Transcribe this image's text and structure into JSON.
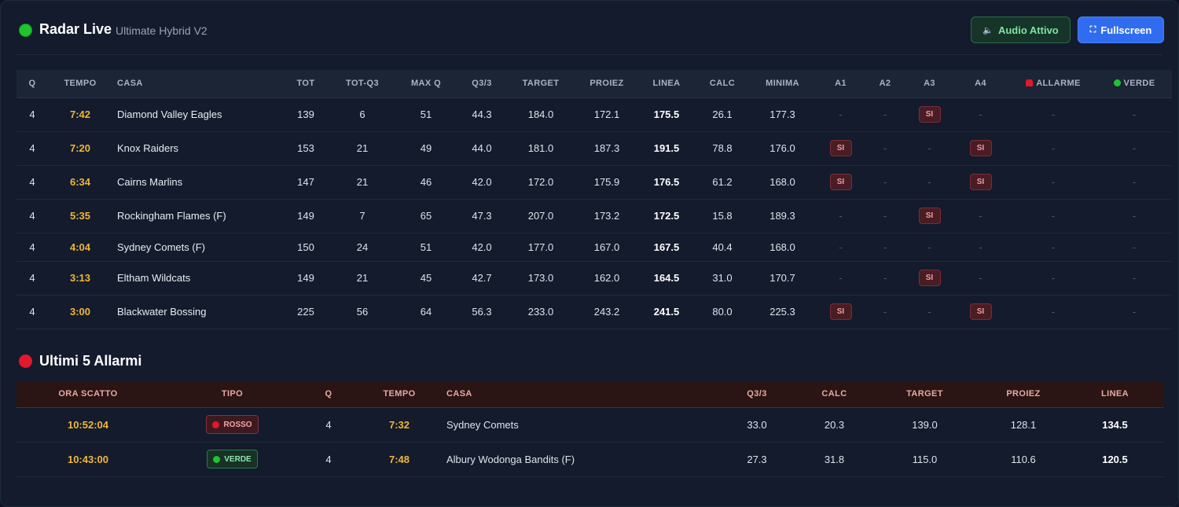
{
  "header": {
    "title": "Radar Live",
    "subtitle": "Ultimate Hybrid V2",
    "audio_label": "Audio Attivo",
    "fullscreen_label": "Fullscreen",
    "status_color": "#1fc42f"
  },
  "radar_table": {
    "columns": {
      "q": "Q",
      "tempo": "TEMPO",
      "casa": "CASA",
      "tot": "TOT",
      "tot_q3": "TOT-Q3",
      "max_q": "MAX Q",
      "q3_3": "Q3/3",
      "target": "TARGET",
      "proiez": "PROIEZ",
      "linea": "LINEA",
      "calc": "CALC",
      "minima": "MINIMA",
      "a1": "A1",
      "a2": "A2",
      "a3": "A3",
      "a4": "A4",
      "allarme": "ALLARME",
      "verde": "VERDE"
    },
    "rows": [
      {
        "q": "4",
        "tempo": "7:42",
        "casa": "Diamond Valley Eagles",
        "tot": "139",
        "tot_q3": "6",
        "max_q": "51",
        "q3_3": "44.3",
        "target": "184.0",
        "proiez": "172.1",
        "linea": "175.5",
        "calc": "26.1",
        "minima": "177.3",
        "a1": "-",
        "a2": "-",
        "a3": "SI",
        "a4": "-",
        "allarme": "-",
        "verde": "-"
      },
      {
        "q": "4",
        "tempo": "7:20",
        "casa": "Knox Raiders",
        "tot": "153",
        "tot_q3": "21",
        "max_q": "49",
        "q3_3": "44.0",
        "target": "181.0",
        "proiez": "187.3",
        "linea": "191.5",
        "calc": "78.8",
        "minima": "176.0",
        "a1": "SI",
        "a2": "-",
        "a3": "-",
        "a4": "SI",
        "allarme": "-",
        "verde": "-"
      },
      {
        "q": "4",
        "tempo": "6:34",
        "casa": "Cairns Marlins",
        "tot": "147",
        "tot_q3": "21",
        "max_q": "46",
        "q3_3": "42.0",
        "target": "172.0",
        "proiez": "175.9",
        "linea": "176.5",
        "calc": "61.2",
        "minima": "168.0",
        "a1": "SI",
        "a2": "-",
        "a3": "-",
        "a4": "SI",
        "allarme": "-",
        "verde": "-"
      },
      {
        "q": "4",
        "tempo": "5:35",
        "casa": "Rockingham Flames (F)",
        "tot": "149",
        "tot_q3": "7",
        "max_q": "65",
        "q3_3": "47.3",
        "target": "207.0",
        "proiez": "173.2",
        "linea": "172.5",
        "calc": "15.8",
        "minima": "189.3",
        "a1": "-",
        "a2": "-",
        "a3": "SI",
        "a4": "-",
        "allarme": "-",
        "verde": "-"
      },
      {
        "q": "4",
        "tempo": "4:04",
        "casa": "Sydney Comets (F)",
        "tot": "150",
        "tot_q3": "24",
        "max_q": "51",
        "q3_3": "42.0",
        "target": "177.0",
        "proiez": "167.0",
        "linea": "167.5",
        "calc": "40.4",
        "minima": "168.0",
        "a1": "-",
        "a2": "-",
        "a3": "-",
        "a4": "-",
        "allarme": "-",
        "verde": "-"
      },
      {
        "q": "4",
        "tempo": "3:13",
        "casa": "Eltham Wildcats",
        "tot": "149",
        "tot_q3": "21",
        "max_q": "45",
        "q3_3": "42.7",
        "target": "173.0",
        "proiez": "162.0",
        "linea": "164.5",
        "calc": "31.0",
        "minima": "170.7",
        "a1": "-",
        "a2": "-",
        "a3": "SI",
        "a4": "-",
        "allarme": "-",
        "verde": "-"
      },
      {
        "q": "4",
        "tempo": "3:00",
        "casa": "Blackwater Bossing",
        "tot": "225",
        "tot_q3": "56",
        "max_q": "64",
        "q3_3": "56.3",
        "target": "233.0",
        "proiez": "243.2",
        "linea": "241.5",
        "calc": "80.0",
        "minima": "225.3",
        "a1": "SI",
        "a2": "-",
        "a3": "-",
        "a4": "SI",
        "allarme": "-",
        "verde": "-"
      }
    ]
  },
  "alarms": {
    "title": "Ultimi 5 Allarmi",
    "columns": {
      "ora": "ORA SCATTO",
      "tipo": "TIPO",
      "q": "Q",
      "tempo": "TEMPO",
      "casa": "CASA",
      "q3_3": "Q3/3",
      "calc": "CALC",
      "target": "TARGET",
      "proiez": "PROIEZ",
      "linea": "LINEA"
    },
    "rows": [
      {
        "ora": "10:52:04",
        "tipo": "ROSSO",
        "q": "4",
        "tempo": "7:32",
        "casa": "Sydney Comets",
        "q3_3": "33.0",
        "calc": "20.3",
        "target": "139.0",
        "proiez": "128.1",
        "linea": "134.5"
      },
      {
        "ora": "10:43:00",
        "tipo": "VERDE",
        "q": "4",
        "tempo": "7:48",
        "casa": "Albury Wodonga Bandits (F)",
        "q3_3": "27.3",
        "calc": "31.8",
        "target": "115.0",
        "proiez": "110.6",
        "linea": "120.5"
      }
    ]
  }
}
